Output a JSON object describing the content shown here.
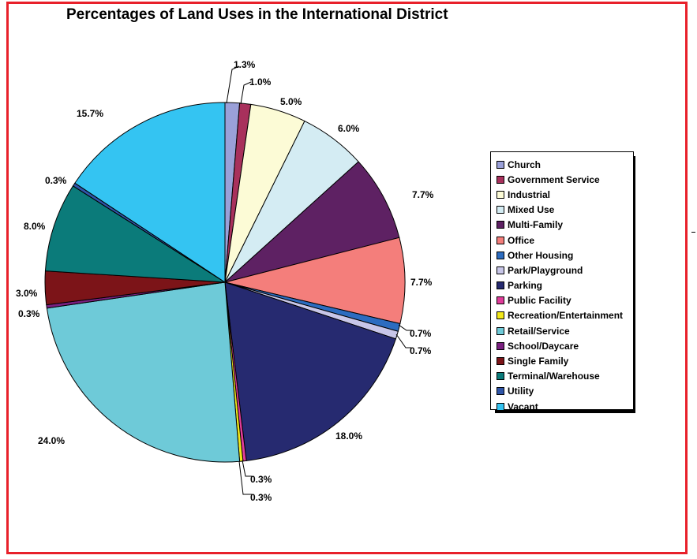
{
  "chart_data": {
    "type": "pie",
    "title": "Percentages of Land Uses in the International District",
    "slices": [
      {
        "name": "Church",
        "value": 1.3,
        "label": "1.3%",
        "color": "#9aa0d8"
      },
      {
        "name": "Government Service",
        "value": 1.0,
        "label": "1.0%",
        "color": "#a8305c"
      },
      {
        "name": "Industrial",
        "value": 5.0,
        "label": "5.0%",
        "color": "#fcfbd6"
      },
      {
        "name": "Mixed Use",
        "value": 6.0,
        "label": "6.0%",
        "color": "#d4ecf3"
      },
      {
        "name": "Multi-Family",
        "value": 7.7,
        "label": "7.7%",
        "color": "#5e2163"
      },
      {
        "name": "Office",
        "value": 7.7,
        "label": "7.7%",
        "color": "#f47e7b"
      },
      {
        "name": "Other Housing",
        "value": 0.7,
        "label": "0.7%",
        "color": "#2c6cc0"
      },
      {
        "name": "Park/Playground",
        "value": 0.7,
        "label": "0.7%",
        "color": "#c8c6e8"
      },
      {
        "name": "Parking",
        "value": 18.0,
        "label": "18.0%",
        "color": "#262a70"
      },
      {
        "name": "Public Facility",
        "value": 0.3,
        "label": "0.3%",
        "color": "#e03c9a"
      },
      {
        "name": "Recreation/Entertainment",
        "value": 0.3,
        "label": "0.3%",
        "color": "#f2e81a"
      },
      {
        "name": "Retail/Service",
        "value": 24.0,
        "label": "24.0%",
        "color": "#6ecad8"
      },
      {
        "name": "School/Daycare",
        "value": 0.3,
        "label": "0.3%",
        "color": "#7a2080"
      },
      {
        "name": "Single Family",
        "value": 3.0,
        "label": "3.0%",
        "color": "#7c1418"
      },
      {
        "name": "Terminal/Warehouse",
        "value": 8.0,
        "label": "8.0%",
        "color": "#0b7b7a"
      },
      {
        "name": "Utility",
        "value": 0.3,
        "label": "0.3%",
        "color": "#2f55a8"
      },
      {
        "name": "Vacant",
        "value": 15.7,
        "label": "15.7%",
        "color": "#34c4f2"
      }
    ],
    "legend_position": "right",
    "start_angle_deg": 0,
    "direction": "clockwise"
  },
  "colors": {
    "frame_border": "#e8202a",
    "background": "#ffffff"
  }
}
